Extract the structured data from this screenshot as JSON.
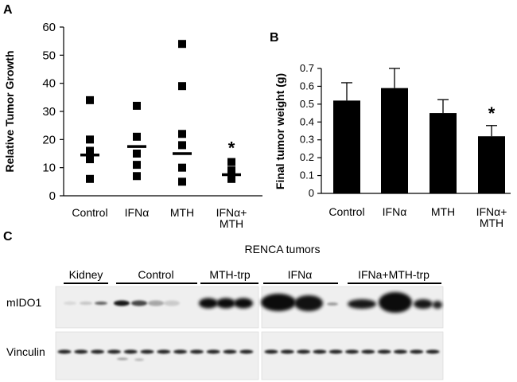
{
  "panel_labels": {
    "a": "A",
    "b": "B",
    "c": "C"
  },
  "chart_data": [
    {
      "type": "scatter",
      "ylabel": "Relative Tumor Growth",
      "ylim": [
        0,
        60
      ],
      "yticks": [
        0,
        10,
        20,
        30,
        40,
        50,
        60
      ],
      "categories": [
        "Control",
        "IFNα",
        "MTH",
        "IFNα+ MTH"
      ],
      "points": [
        [
          34,
          20,
          16,
          13,
          6
        ],
        [
          32,
          21,
          15,
          11,
          7
        ],
        [
          54,
          39,
          22,
          18,
          10,
          5
        ],
        [
          12,
          9,
          6
        ]
      ],
      "means": [
        14.5,
        17.5,
        15,
        7.5
      ],
      "significance": [
        "",
        "",
        "",
        "*"
      ],
      "marker_color": "#000000"
    },
    {
      "type": "bar",
      "ylabel": "Final tumor weight (g)",
      "ylim": [
        0,
        0.7
      ],
      "yticks": [
        "0",
        "0.1",
        "0.2",
        "0.3",
        "0.4",
        "0.5",
        "0.6",
        "0.7"
      ],
      "categories": [
        "Control",
        "IFNα",
        "MTH",
        "IFNα+ MTH"
      ],
      "values": [
        0.52,
        0.59,
        0.45,
        0.32
      ],
      "errors": [
        0.1,
        0.11,
        0.075,
        0.06
      ],
      "significance": [
        "",
        "",
        "",
        "*"
      ],
      "bar_color": "#000000"
    }
  ],
  "blot": {
    "title": "RENCA tumors",
    "groups": [
      "Kidney",
      "Control",
      "MTH-trp",
      "IFNα",
      "IFNa+MTH-trp"
    ],
    "row_labels": [
      "mIDO1",
      "Vinculin"
    ]
  }
}
